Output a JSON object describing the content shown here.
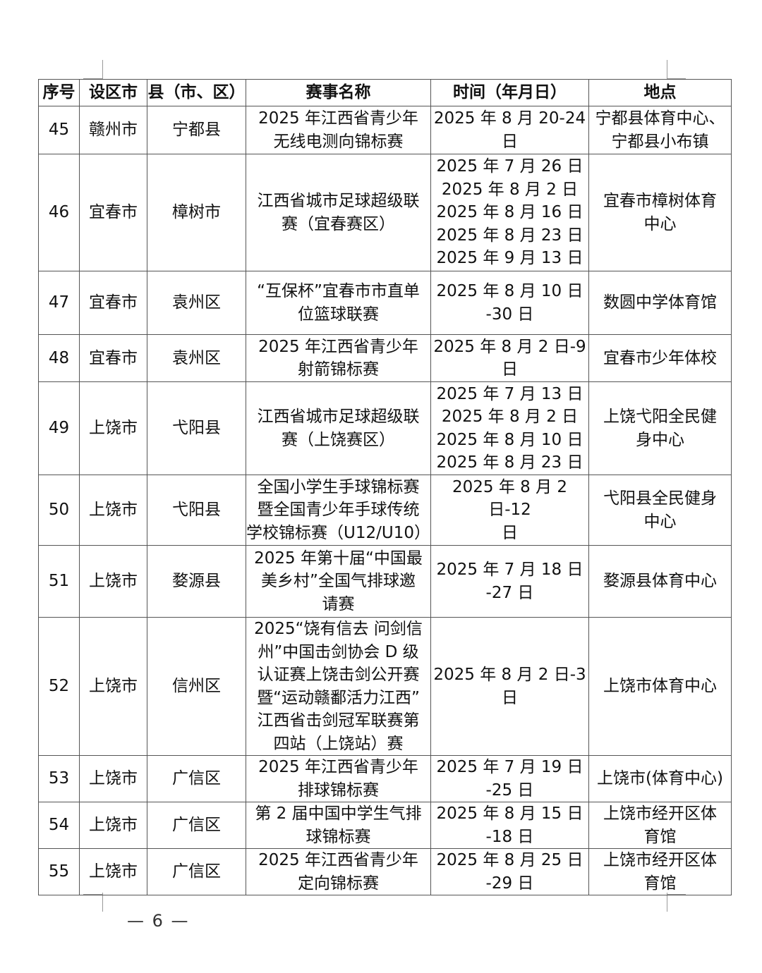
{
  "table": {
    "headers": [
      "序号",
      "设区市",
      "县（市、区）",
      "赛事名称",
      "时间（年月日）",
      "地点"
    ],
    "rows": [
      [
        "45",
        "赣州市",
        "宁都县",
        "2025 年江西省青少年\n无线电测向锦标赛",
        "2025 年 8 月 20-24\n日",
        "宁都县体育中心、\n宁都县小布镇"
      ],
      [
        "46",
        "宜春市",
        "樟树市",
        "江西省城市足球超级联\n赛（宜春赛区）",
        "2025 年 7 月 26 日\n2025 年 8 月 2 日\n2025 年 8 月 16 日\n2025 年 8 月 23 日\n2025 年 9 月 13 日",
        "宜春市樟树体育\n中心"
      ],
      [
        "47",
        "宜春市",
        "袁州区",
        "“互保杯”宜春市市直单\n位篮球联赛",
        "2025 年 8 月 10 日\n-30 日",
        "数圆中学体育馆"
      ],
      [
        "48",
        "宜春市",
        "袁州区",
        "2025 年江西省青少年\n射箭锦标赛",
        "2025 年 8 月 2 日-9\n日",
        "宜春市少年体校"
      ],
      [
        "49",
        "上饶市",
        "弋阳县",
        "江西省城市足球超级联\n赛（上饶赛区）",
        "2025 年 7 月 13 日\n2025 年 8 月 2 日\n2025 年 8 月 10 日\n2025 年 8 月 23 日",
        "上饶弋阳全民健\n身中心"
      ],
      [
        "50",
        "上饶市",
        "弋阳县",
        "全国小学生手球锦标赛\n暨全国青少年手球传统\n学校锦标赛（U12/U10）",
        "2025 年 8 月 2 日-12\n日",
        "弋阳县全民健身\n中心"
      ],
      [
        "51",
        "上饶市",
        "婺源县",
        "2025 年第十届“中国最\n美乡村”全国气排球邀\n请赛",
        "2025 年 7 月 18 日\n-27 日",
        "婺源县体育中心"
      ],
      [
        "52",
        "上饶市",
        "信州区",
        "2025“饶有信去 问剑信\n州”中国击剑协会 D 级\n认证赛上饶击剑公开赛\n暨“运动赣鄱活力江西”\n江西省击剑冠军联赛第\n四站（上饶站）赛",
        "2025 年 8 月 2 日-3\n日",
        "上饶市体育中心"
      ],
      [
        "53",
        "上饶市",
        "广信区",
        "2025 年江西省青少年\n排球锦标赛",
        "2025 年 7 月 19 日\n-25 日",
        "上饶市(体育中心)"
      ],
      [
        "54",
        "上饶市",
        "广信区",
        "第 2 届中国中学生气排\n球锦标赛",
        "2025 年 8 月 15 日\n-18 日",
        "上饶市经开区体\n育馆"
      ],
      [
        "55",
        "上饶市",
        "广信区",
        "2025 年江西省青少年\n定向锦标赛",
        "2025 年 8 月 25 日\n-29 日",
        "上饶市经开区体\n育馆"
      ]
    ]
  },
  "footer": {
    "page_number": "— 6 —"
  }
}
